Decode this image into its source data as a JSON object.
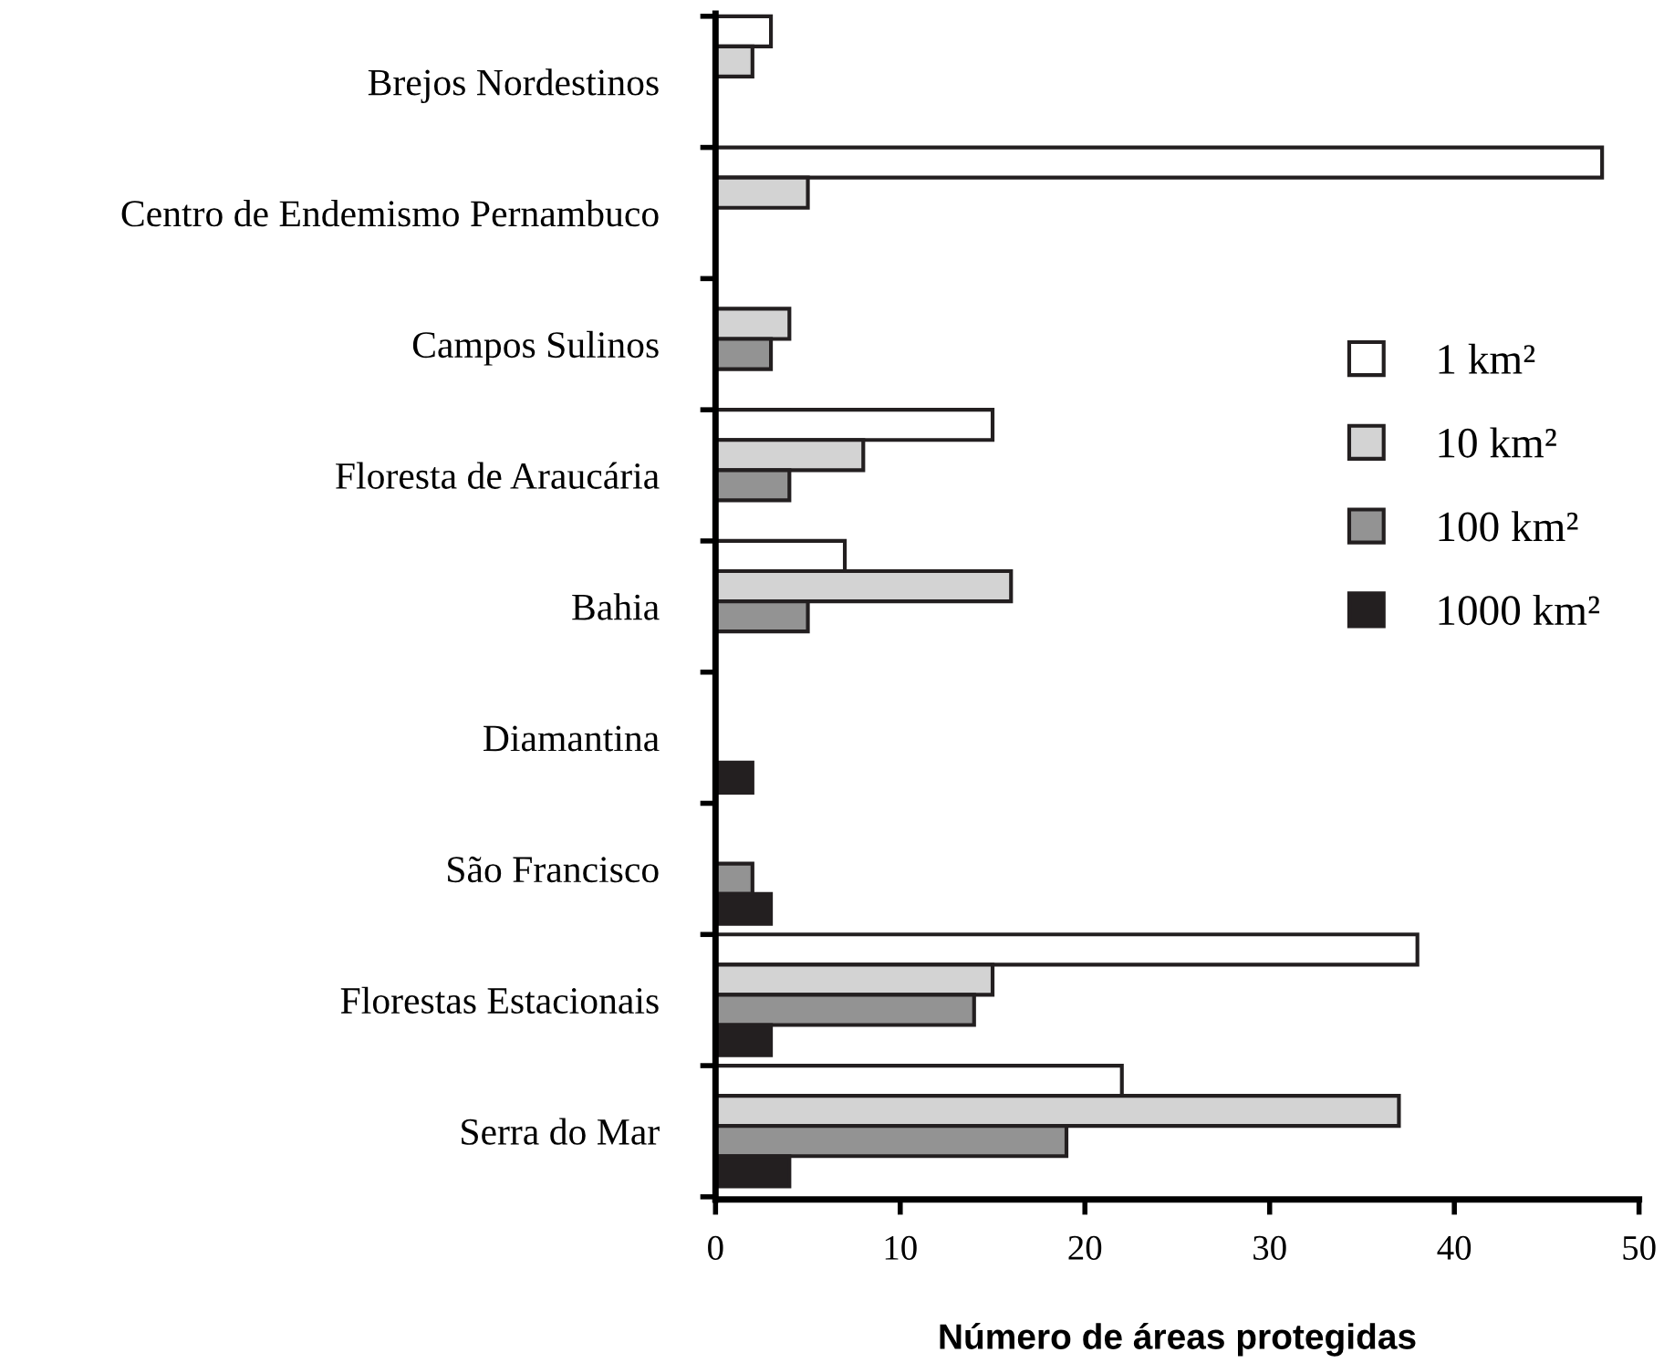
{
  "chart_data": {
    "type": "bar",
    "orientation": "horizontal",
    "xlabel": "Número de áreas protegidas",
    "categories": [
      "Brejos Nordestinos",
      "Centro de Endemismo Pernambuco",
      "Campos Sulinos",
      "Floresta de Araucária",
      "Bahia",
      "Diamantina",
      "São Francisco",
      "Florestas Estacionais",
      "Serra do Mar"
    ],
    "series": [
      {
        "name": "1 km²",
        "color": "#ffffff",
        "values": [
          3,
          48,
          null,
          15,
          7,
          null,
          null,
          38,
          22
        ]
      },
      {
        "name": "10 km²",
        "color": "#d3d3d3",
        "values": [
          2,
          5,
          4,
          8,
          16,
          null,
          null,
          15,
          37
        ]
      },
      {
        "name": "100 km²",
        "color": "#939393",
        "values": [
          null,
          null,
          3,
          4,
          5,
          null,
          2,
          14,
          19
        ]
      },
      {
        "name": "1000 km²",
        "color": "#231f20",
        "values": [
          null,
          null,
          null,
          null,
          null,
          2,
          3,
          3,
          4
        ]
      }
    ],
    "xlim": [
      0,
      50
    ],
    "xticks": [
      0,
      10,
      20,
      30,
      40,
      50
    ],
    "grid": false,
    "legend": "right"
  }
}
